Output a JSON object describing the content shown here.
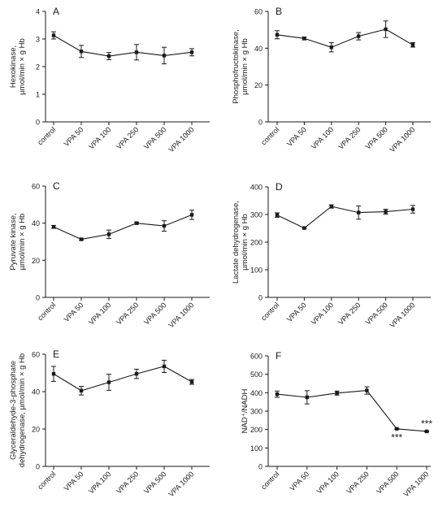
{
  "chart_data": [
    {
      "type": "line",
      "panel": "A",
      "ylabel_lines": [
        "Hexokinase,",
        "µmol/min × g Hb"
      ],
      "ylim": [
        0,
        4
      ],
      "yticks": [
        0,
        1,
        2,
        3,
        4
      ],
      "categories": [
        "control",
        "VPA 50",
        "VPA 100",
        "VPA 250",
        "VPA 500",
        "VPA 1000"
      ],
      "series": [
        {
          "values": [
            3.13,
            2.55,
            2.38,
            2.52,
            2.4,
            2.52
          ],
          "errors": [
            0.13,
            0.22,
            0.13,
            0.28,
            0.3,
            0.13
          ]
        }
      ],
      "annotations": []
    },
    {
      "type": "line",
      "panel": "B",
      "ylabel_lines": [
        "Phosphofructokinase,",
        "µmol/min × g Hb"
      ],
      "ylim": [
        0,
        60
      ],
      "yticks": [
        0,
        20,
        40,
        60
      ],
      "categories": [
        "control",
        "VPA 50",
        "VPA 100",
        "VPA 250",
        "VPA 500",
        "VPA 1000"
      ],
      "series": [
        {
          "values": [
            47.3,
            45.3,
            40.5,
            46.5,
            50.3,
            41.8
          ],
          "errors": [
            2.2,
            0.8,
            2.5,
            2.0,
            4.5,
            1.2
          ]
        }
      ],
      "annotations": []
    },
    {
      "type": "line",
      "panel": "C",
      "ylabel_lines": [
        "Pyruvate kinase,",
        "µmol/min × g Hb"
      ],
      "ylim": [
        0,
        60
      ],
      "yticks": [
        0,
        20,
        40,
        60
      ],
      "categories": [
        "control",
        "VPA 50",
        "VPA 100",
        "VPA 250",
        "VPA 500",
        "VPA 1000"
      ],
      "series": [
        {
          "values": [
            38.0,
            31.3,
            34.0,
            40.0,
            38.5,
            44.5
          ],
          "errors": [
            0.8,
            0.5,
            2.3,
            0.5,
            2.8,
            2.5
          ]
        }
      ],
      "annotations": []
    },
    {
      "type": "line",
      "panel": "D",
      "ylabel_lines": [
        "Lactate dehydrogenase,",
        "µmol/min × g Hb"
      ],
      "ylim": [
        0,
        400
      ],
      "yticks": [
        0,
        100,
        200,
        300,
        400
      ],
      "categories": [
        "control",
        "VPA 50",
        "VPA 100",
        "VPA 250",
        "VPA 500",
        "VPA 1000"
      ],
      "series": [
        {
          "values": [
            298,
            251,
            329,
            307,
            310,
            319
          ],
          "errors": [
            8,
            3,
            6,
            24,
            9,
            14
          ]
        }
      ],
      "annotations": []
    },
    {
      "type": "line",
      "panel": "E",
      "ylabel_lines": [
        "Glyceraldehyde-3-phosphate",
        "dehydrogenase, µmol/min × g Hb"
      ],
      "ylim": [
        0,
        60
      ],
      "yticks": [
        0,
        20,
        40,
        60
      ],
      "categories": [
        "control",
        "VPA 50",
        "VPA 100",
        "VPA 250",
        "VPA 500",
        "VPA 1000"
      ],
      "series": [
        {
          "values": [
            49.5,
            40.5,
            45.0,
            49.5,
            53.5,
            45.2
          ],
          "errors": [
            4.0,
            2.3,
            4.3,
            2.5,
            3.3,
            1.3
          ]
        }
      ],
      "annotations": []
    },
    {
      "type": "line",
      "panel": "F",
      "ylabel_lines": [
        "NAD⁺/NADH"
      ],
      "ylim": [
        0,
        600
      ],
      "yticks": [
        0,
        100,
        200,
        300,
        400,
        500,
        600
      ],
      "categories": [
        "control",
        "VPA 50",
        "VPA 100",
        "VPA 250",
        "VPA 500",
        "VPA 1000"
      ],
      "series": [
        {
          "values": [
            392,
            375,
            398,
            412,
            204,
            190
          ],
          "errors": [
            17,
            36,
            11,
            20,
            3,
            3
          ]
        }
      ],
      "annotations": [
        {
          "category": "VPA 500",
          "text": "***"
        },
        {
          "category": "VPA 1000",
          "text": "***"
        }
      ]
    }
  ]
}
